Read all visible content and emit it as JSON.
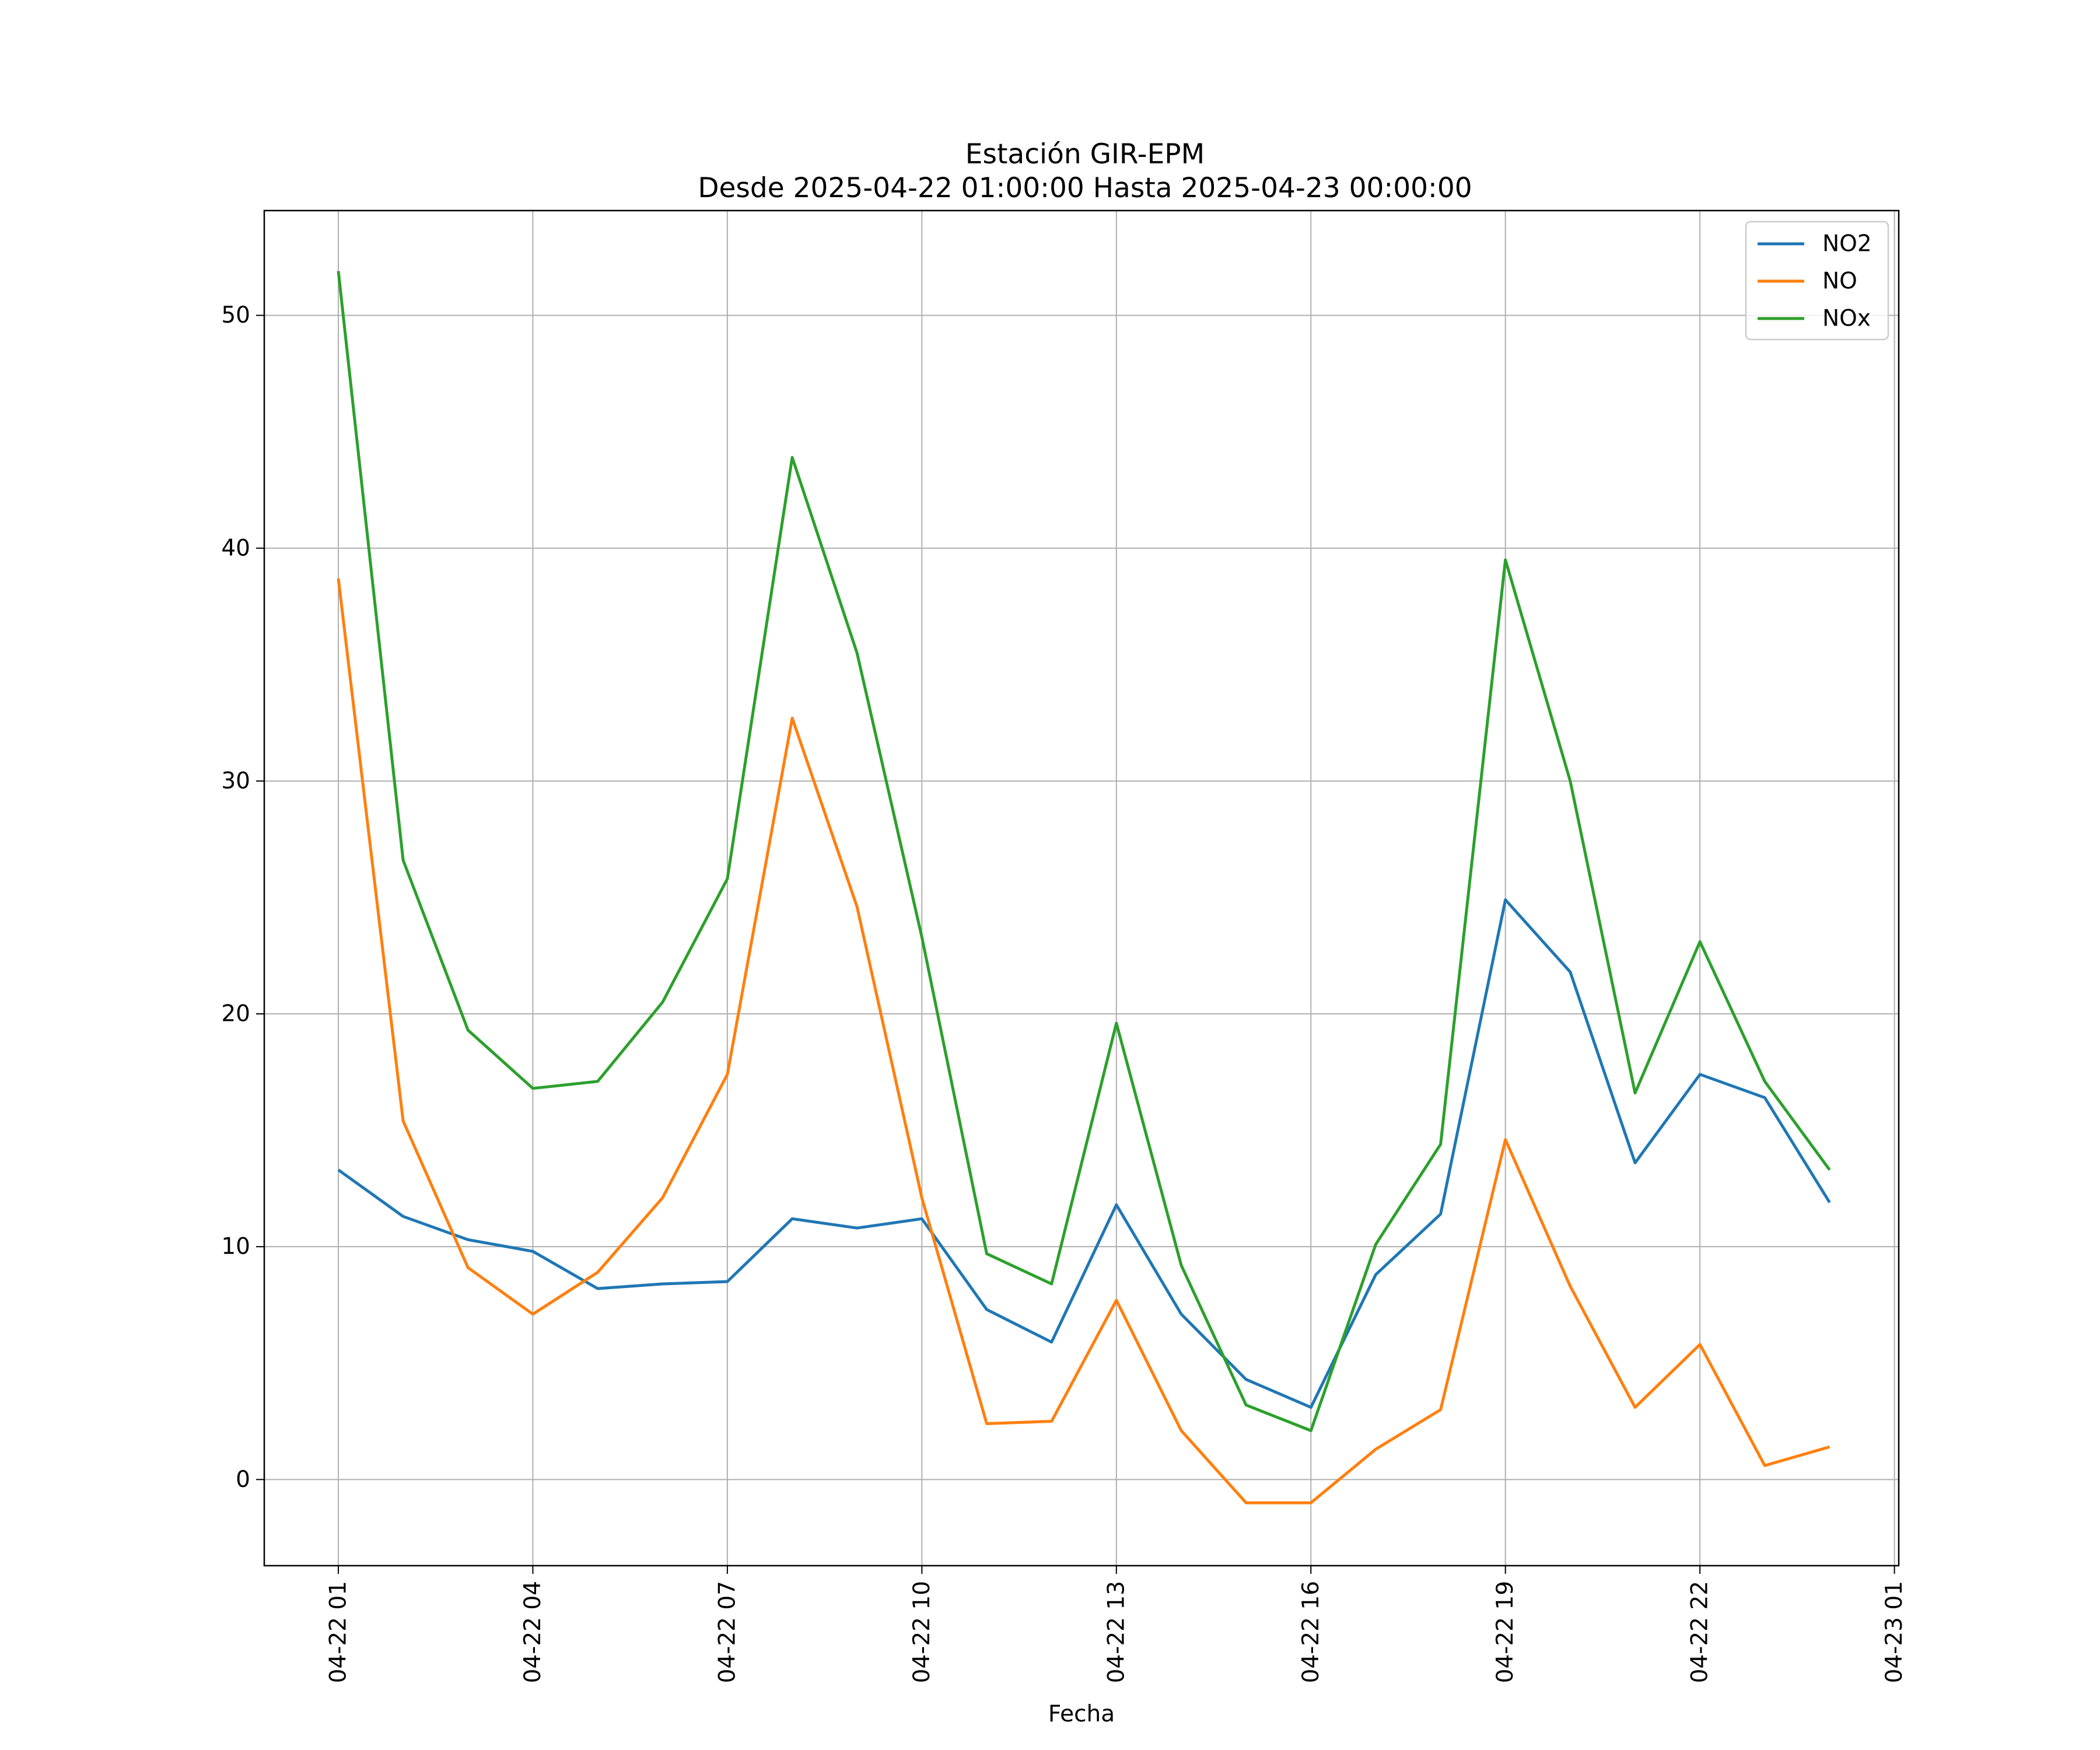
{
  "chart_data": {
    "type": "line",
    "title": "Estación GIR-EPM",
    "subtitle": "Desde 2025-04-22 01:00:00 Hasta 2025-04-23 00:00:00",
    "xlabel": "Fecha",
    "ylabel": "",
    "x": [
      "2025-04-22 01:00",
      "2025-04-22 02:00",
      "2025-04-22 03:00",
      "2025-04-22 04:00",
      "2025-04-22 05:00",
      "2025-04-22 06:00",
      "2025-04-22 07:00",
      "2025-04-22 08:00",
      "2025-04-22 09:00",
      "2025-04-22 10:00",
      "2025-04-22 11:00",
      "2025-04-22 12:00",
      "2025-04-22 13:00",
      "2025-04-22 14:00",
      "2025-04-22 15:00",
      "2025-04-22 16:00",
      "2025-04-22 17:00",
      "2025-04-22 18:00",
      "2025-04-22 19:00",
      "2025-04-22 20:00",
      "2025-04-22 21:00",
      "2025-04-22 22:00",
      "2025-04-22 23:00",
      "2025-04-23 00:00"
    ],
    "x_ticks": [
      "04-22 01",
      "04-22 04",
      "04-22 07",
      "04-22 10",
      "04-22 13",
      "04-22 16",
      "04-22 19",
      "04-22 22",
      "04-23 01"
    ],
    "y_ticks": [
      "0",
      "10",
      "20",
      "30",
      "40",
      "50"
    ],
    "ylim": [
      -3.7,
      54.5
    ],
    "grid": true,
    "legend_position": "top-right",
    "series": [
      {
        "name": "NO2",
        "color": "#1f77b4",
        "values": [
          13.3,
          11.3,
          10.3,
          9.8,
          8.2,
          8.4,
          8.5,
          11.2,
          10.8,
          11.2,
          7.3,
          5.9,
          11.8,
          7.1,
          4.3,
          3.1,
          8.8,
          11.4,
          24.9,
          21.8,
          13.6,
          17.4,
          16.4,
          11.9
        ]
      },
      {
        "name": "NO",
        "color": "#ff7f0e",
        "values": [
          38.7,
          15.4,
          9.1,
          7.1,
          8.9,
          12.1,
          17.4,
          32.7,
          24.6,
          12.1,
          2.4,
          2.5,
          7.7,
          2.1,
          -1.0,
          -1.0,
          1.3,
          3.0,
          14.6,
          8.3,
          3.1,
          5.8,
          0.6,
          1.4
        ]
      },
      {
        "name": "NOx",
        "color": "#2ca02c",
        "values": [
          51.9,
          26.6,
          19.3,
          16.8,
          17.1,
          20.5,
          25.8,
          43.9,
          35.5,
          23.3,
          9.7,
          8.4,
          19.6,
          9.2,
          3.2,
          2.1,
          10.1,
          14.4,
          39.5,
          30.0,
          16.6,
          23.1,
          17.1,
          13.3
        ]
      }
    ]
  }
}
